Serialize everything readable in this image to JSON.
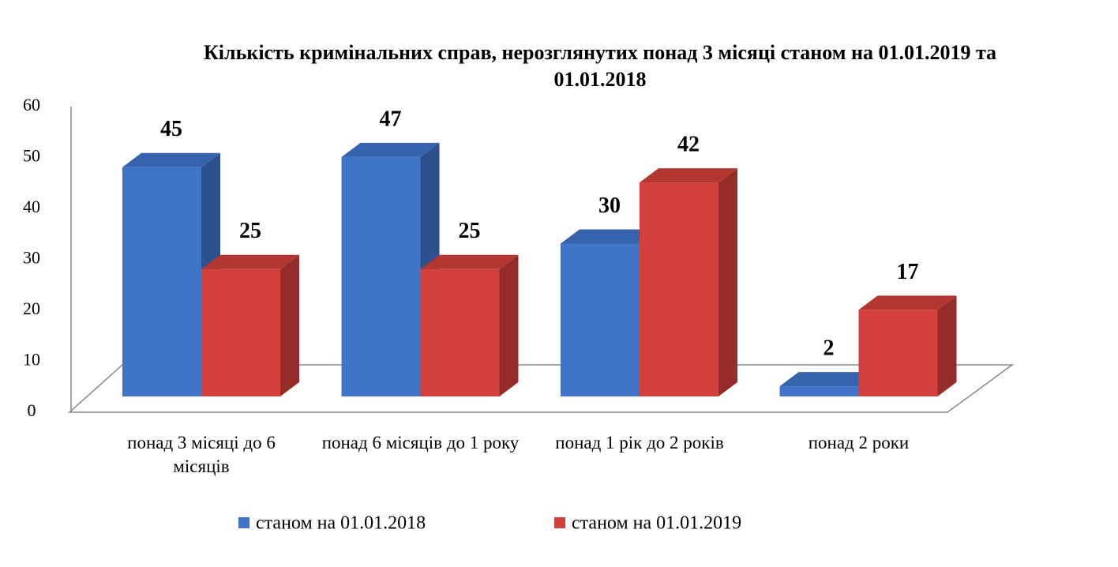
{
  "chart_data": {
    "type": "bar3d",
    "title": "Кількість кримінальних справ, нерозглянутих понад 3 місяці станом на 01.01.2019 та 01.01.2018",
    "categories": [
      "понад 3 місяці до 6 місяців",
      "понад 6 місяців до 1 року",
      "понад 1 рік до 2 років",
      "понад 2 роки"
    ],
    "series": [
      {
        "name": "станом на 01.01.2018",
        "color": "#3f74c9",
        "values": [
          45,
          47,
          30,
          2
        ]
      },
      {
        "name": "станом на 01.01.2019",
        "color": "#d33f3a",
        "values": [
          25,
          25,
          42,
          17
        ]
      }
    ],
    "ylim": [
      0,
      60
    ],
    "yticks": [
      0,
      10,
      20,
      30,
      40,
      50,
      60
    ],
    "grid": false,
    "legend": "bottom"
  }
}
